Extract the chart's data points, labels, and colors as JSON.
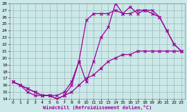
{
  "xlabel": "Windchill (Refroidissement éolien,°C)",
  "ylim": [
    14,
    28
  ],
  "xlim": [
    0,
    23
  ],
  "yticks": [
    14,
    15,
    16,
    17,
    18,
    19,
    20,
    21,
    22,
    23,
    24,
    25,
    26,
    27,
    28
  ],
  "xticks": [
    0,
    1,
    2,
    3,
    4,
    5,
    6,
    7,
    8,
    9,
    10,
    11,
    12,
    13,
    14,
    15,
    16,
    17,
    18,
    19,
    20,
    21,
    22,
    23
  ],
  "bg_color": "#cce8e8",
  "line_color": "#990099",
  "grid_color": "#99bbbb",
  "line1_x": [
    0,
    1,
    2,
    3,
    4,
    5,
    6,
    7,
    8,
    9,
    10,
    11,
    12,
    13,
    14,
    15,
    16,
    17,
    18,
    19,
    20,
    21,
    22,
    23
  ],
  "line1_y": [
    16.5,
    16.0,
    15.0,
    14.5,
    14.5,
    14.5,
    14.0,
    14.5,
    16.0,
    19.5,
    16.5,
    19.5,
    23.0,
    24.5,
    28.0,
    26.5,
    27.5,
    26.5,
    27.0,
    27.0,
    26.0,
    24.0,
    22.0,
    21.0
  ],
  "line2_x": [
    0,
    1,
    2,
    3,
    4,
    5,
    6,
    7,
    8,
    9,
    10,
    11,
    12,
    13,
    14,
    15,
    16,
    17,
    18,
    19,
    20,
    21,
    22,
    23
  ],
  "line2_y": [
    16.5,
    16.0,
    15.5,
    15.0,
    14.5,
    14.5,
    14.5,
    15.0,
    16.5,
    19.5,
    25.5,
    26.5,
    26.5,
    26.5,
    27.0,
    26.5,
    26.5,
    27.0,
    27.0,
    26.5,
    26.0,
    24.0,
    22.0,
    21.0
  ],
  "line3_x": [
    0,
    1,
    2,
    3,
    4,
    5,
    6,
    7,
    8,
    9,
    10,
    11,
    12,
    13,
    14,
    15,
    16,
    17,
    18,
    19,
    20,
    21,
    22,
    23
  ],
  "line3_y": [
    16.5,
    16.0,
    15.5,
    15.0,
    14.5,
    14.5,
    14.0,
    14.5,
    15.0,
    16.0,
    17.0,
    17.5,
    18.5,
    19.5,
    20.0,
    20.5,
    20.5,
    21.0,
    21.0,
    21.0,
    21.0,
    21.0,
    21.0,
    21.0
  ]
}
